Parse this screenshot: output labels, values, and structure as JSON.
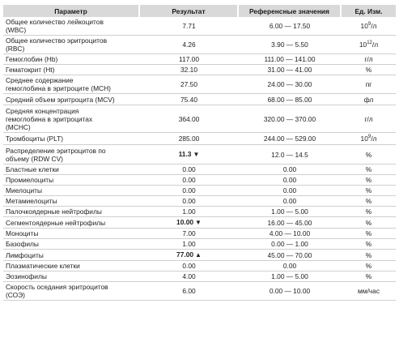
{
  "table": {
    "headers": [
      "Параметр",
      "Результат",
      "Референсные значения",
      "Ед. Изм."
    ],
    "rows": [
      {
        "param": "Общее количество лейкоцитов\n(WBC)",
        "result": "7.71",
        "ref": "6.00 — 17.50",
        "unit": "10",
        "unit_sup": "9",
        "unit_suffix": "/л",
        "h": 21
      },
      {
        "param": "Общее количество эритроцитов\n(RBC)",
        "result": "4.26",
        "ref": "3.90 — 5.50",
        "unit": "10",
        "unit_sup": "12",
        "unit_suffix": "/л",
        "h": 23
      },
      {
        "param": "Гемоглобин (Hb)",
        "result": "117.00",
        "ref": "111.00 — 141.00",
        "unit": "г/л",
        "h": 13
      },
      {
        "param": "Гематокрит (Ht)",
        "result": "32.10",
        "ref": "31.00 — 41.00",
        "unit": "%",
        "h": 13
      },
      {
        "param": "Среднее содержание\n гемоглобина в эритроците (MCH)",
        "result": "27.50",
        "ref": "24.00 — 30.00",
        "unit": "пг",
        "h": 23
      },
      {
        "param": "Средний объем эритроцита (MCV)",
        "result": "75.40",
        "ref": "68.00 — 85.00",
        "unit": "фл",
        "h": 14
      },
      {
        "param": "Средняя концентрация\n гемоглобина в эритроцитах\n(MCHC)",
        "result": "364.00",
        "ref": "320.00 — 370.00",
        "unit": "г/л",
        "h": 34
      },
      {
        "param": "Тромбоциты (PLT)",
        "result": "285.00",
        "ref": "244.00 — 529.00",
        "unit": "10",
        "unit_sup": "9",
        "unit_suffix": "/л",
        "h": 15
      },
      {
        "param": "Распределение эритроцитов по\nобъему (RDW CV)",
        "result": "11.3",
        "mark": "▼",
        "flag": true,
        "ref": "12.0 — 14.5",
        "unit": "%",
        "h": 24
      },
      {
        "param": "Бластные клетки",
        "result": "0.00",
        "ref": "0.00",
        "unit": "%",
        "h": 13
      },
      {
        "param": "Промиелоциты",
        "result": "0.00",
        "ref": "0.00",
        "unit": "%",
        "h": 13
      },
      {
        "param": "Миелоциты",
        "result": "0.00",
        "ref": "0.00",
        "unit": "%",
        "h": 13
      },
      {
        "param": "Метамиелоциты",
        "result": "0.00",
        "ref": "0.00",
        "unit": "%",
        "h": 13
      },
      {
        "param": "Палочкоядерные нейтрофилы",
        "result": "1.00",
        "ref": "1.00 — 5.00",
        "unit": "%",
        "h": 13
      },
      {
        "param": "Сегментоядерные нейтрофилы",
        "result": "10.00",
        "mark": "▼",
        "flag": true,
        "ref": "16.00 — 45.00",
        "unit": "%",
        "h": 13
      },
      {
        "param": "Моноциты",
        "result": "7.00",
        "ref": "4.00 — 10.00",
        "unit": "%",
        "h": 13
      },
      {
        "param": "Базофилы",
        "result": "1.00",
        "ref": "0.00 — 1.00",
        "unit": "%",
        "h": 13
      },
      {
        "param": "Лимфоциты",
        "result": "77.00",
        "mark": "▲",
        "flag": true,
        "ref": "45.00 — 70.00",
        "unit": "%",
        "h": 13
      },
      {
        "param": "Плазматические клетки",
        "result": "0.00",
        "ref": "0.00",
        "unit": "%",
        "h": 13
      },
      {
        "param": "Эозинофилы",
        "result": "4.00",
        "ref": "1.00 — 5.00",
        "unit": "%",
        "h": 13
      },
      {
        "param": "Скорость оседания эритроцитов\n(СОЭ)",
        "result": "6.00",
        "ref": "0.00 — 10.00",
        "unit": "мм/час",
        "h": 23
      }
    ]
  }
}
